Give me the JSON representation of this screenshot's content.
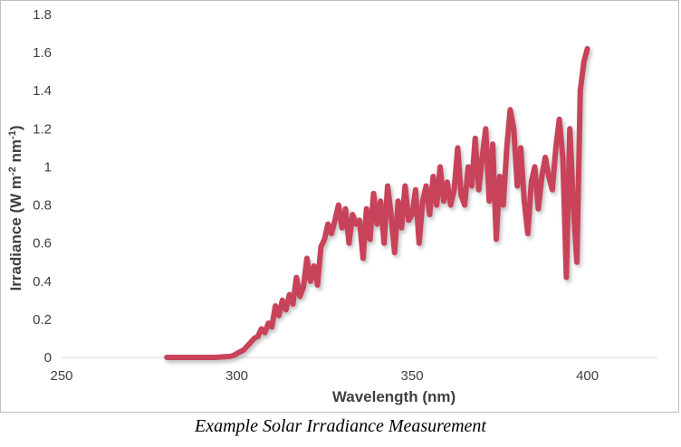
{
  "caption": "Example Solar Irradiance Measurement",
  "chart_data": {
    "type": "line",
    "title": "",
    "xlabel": "Wavelength (nm)",
    "ylabel_parts": {
      "base": "Irradiance (W m",
      "exp1": "-2",
      "mid": " nm",
      "exp2": "-1",
      "end": ")"
    },
    "xlim": [
      250,
      420
    ],
    "ylim": [
      0,
      1.8
    ],
    "x_ticks": [
      250,
      300,
      350,
      400
    ],
    "y_ticks": [
      0,
      0.2,
      0.4,
      0.6,
      0.8,
      1,
      1.2,
      1.4,
      1.6,
      1.8
    ],
    "x_tick_labels": [
      "250",
      "300",
      "350",
      "400"
    ],
    "y_tick_labels": [
      "0",
      "0.2",
      "0.4",
      "0.6",
      "0.8",
      "1",
      "1.2",
      "1.4",
      "1.6",
      "1.8"
    ],
    "grid": false,
    "legend": "none",
    "line_color": "#c8435a",
    "series": [
      {
        "x": [
          280,
          285,
          290,
          294,
          296,
          298,
          299,
          300,
          301,
          302,
          303,
          304,
          305,
          306,
          307,
          308,
          309,
          310,
          311,
          312,
          313,
          314,
          315,
          316,
          317,
          318,
          319,
          320,
          321,
          322,
          323,
          324,
          325,
          326,
          327,
          328,
          329,
          330,
          331,
          332,
          333,
          334,
          335,
          336,
          337,
          338,
          339,
          340,
          341,
          342,
          343,
          344,
          345,
          346,
          347,
          348,
          349,
          350,
          351,
          352,
          353,
          354,
          355,
          356,
          357,
          358,
          359,
          360,
          361,
          362,
          363,
          364,
          365,
          366,
          367,
          368,
          369,
          370,
          371,
          372,
          373,
          374,
          375,
          376,
          377,
          378,
          379,
          380,
          381,
          382,
          383,
          384,
          385,
          386,
          387,
          388,
          389,
          390,
          391,
          392,
          393,
          394,
          395,
          396,
          397,
          398,
          399,
          400
        ],
        "y": [
          0,
          0,
          0,
          0,
          0.003,
          0.005,
          0.01,
          0.02,
          0.03,
          0.04,
          0.06,
          0.08,
          0.1,
          0.11,
          0.15,
          0.13,
          0.18,
          0.16,
          0.27,
          0.22,
          0.3,
          0.25,
          0.33,
          0.28,
          0.42,
          0.32,
          0.37,
          0.52,
          0.4,
          0.48,
          0.38,
          0.58,
          0.62,
          0.7,
          0.65,
          0.72,
          0.8,
          0.68,
          0.78,
          0.6,
          0.75,
          0.7,
          0.72,
          0.52,
          0.78,
          0.62,
          0.86,
          0.7,
          0.82,
          0.6,
          0.9,
          0.75,
          0.55,
          0.82,
          0.68,
          0.9,
          0.72,
          0.75,
          0.88,
          0.6,
          0.82,
          0.9,
          0.75,
          0.95,
          0.8,
          1.0,
          0.82,
          0.92,
          0.8,
          0.88,
          1.1,
          0.85,
          0.8,
          1.0,
          0.9,
          1.15,
          0.88,
          1.05,
          1.2,
          0.82,
          1.12,
          0.62,
          0.95,
          0.8,
          1.1,
          1.3,
          1.2,
          0.9,
          1.1,
          0.82,
          0.65,
          0.92,
          1.0,
          0.78,
          0.95,
          1.05,
          0.95,
          0.88,
          1.1,
          1.25,
          1.05,
          0.42,
          1.2,
          0.8,
          0.5,
          1.4,
          1.55,
          1.62
        ]
      }
    ]
  }
}
